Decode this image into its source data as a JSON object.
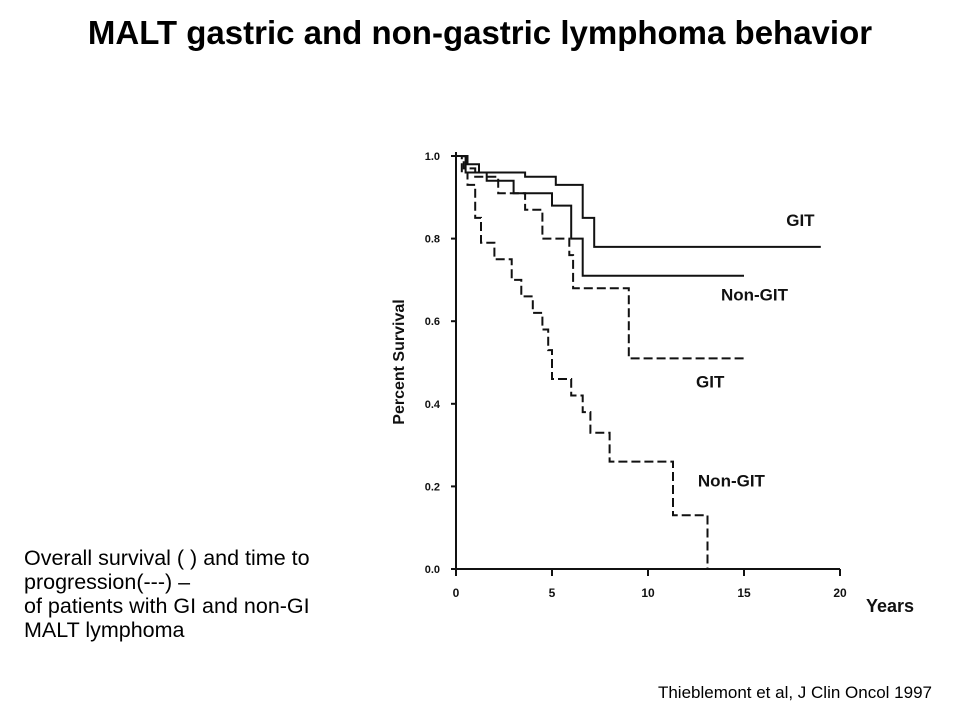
{
  "slide": {
    "title": "MALT gastric and non-gastric lymphoma behavior",
    "caption_lines": [
      "Overall survival (    ) and time to",
      "progression(---) –",
      "of patients with GI and non-GI",
      "MALT lymphoma"
    ],
    "citation": "Thieblemont et al, J Clin Oncol 1997"
  },
  "chart_data": {
    "type": "line",
    "subtype": "kaplan-meier-step",
    "title": "",
    "xlabel": "Years",
    "ylabel": "Percent Survival",
    "xlim": [
      0,
      20
    ],
    "ylim": [
      0,
      1.0
    ],
    "xticks": [
      "0",
      "5",
      "10",
      "15",
      "20"
    ],
    "yticks": [
      "0.0",
      "0.2",
      "0.4",
      "0.6",
      "0.8",
      "1.0"
    ],
    "grid": false,
    "legend": "none",
    "line_color": "#111111",
    "series": [
      {
        "name": "GIT",
        "style": "solid",
        "points": [
          [
            0,
            1.0
          ],
          [
            0.6,
            1.0
          ],
          [
            0.6,
            0.98
          ],
          [
            1.2,
            0.98
          ],
          [
            1.2,
            0.96
          ],
          [
            3.6,
            0.96
          ],
          [
            3.6,
            0.95
          ],
          [
            5.2,
            0.95
          ],
          [
            5.2,
            0.93
          ],
          [
            6.6,
            0.93
          ],
          [
            6.6,
            0.85
          ],
          [
            7.2,
            0.85
          ],
          [
            7.2,
            0.78
          ],
          [
            19,
            0.78
          ]
        ]
      },
      {
        "name": "Non-GIT",
        "style": "solid",
        "points": [
          [
            0,
            1.0
          ],
          [
            0.5,
            1.0
          ],
          [
            0.5,
            0.96
          ],
          [
            1.6,
            0.96
          ],
          [
            1.6,
            0.94
          ],
          [
            3.0,
            0.94
          ],
          [
            3.0,
            0.91
          ],
          [
            5.0,
            0.91
          ],
          [
            5.0,
            0.88
          ],
          [
            6.0,
            0.88
          ],
          [
            6.0,
            0.8
          ],
          [
            6.6,
            0.8
          ],
          [
            6.6,
            0.71
          ],
          [
            15,
            0.71
          ]
        ]
      },
      {
        "name": "GIT",
        "style": "dashed",
        "points": [
          [
            0,
            1.0
          ],
          [
            0.4,
            1.0
          ],
          [
            0.4,
            0.97
          ],
          [
            1.0,
            0.97
          ],
          [
            1.0,
            0.95
          ],
          [
            2.2,
            0.95
          ],
          [
            2.2,
            0.91
          ],
          [
            3.6,
            0.91
          ],
          [
            3.6,
            0.87
          ],
          [
            4.5,
            0.87
          ],
          [
            4.5,
            0.8
          ],
          [
            5.9,
            0.8
          ],
          [
            5.9,
            0.76
          ],
          [
            6.1,
            0.76
          ],
          [
            6.1,
            0.68
          ],
          [
            9.0,
            0.68
          ],
          [
            9.0,
            0.51
          ],
          [
            15,
            0.51
          ]
        ]
      },
      {
        "name": "Non-GIT",
        "style": "dashed",
        "points": [
          [
            0,
            1.0
          ],
          [
            0.3,
            1.0
          ],
          [
            0.3,
            0.96
          ],
          [
            0.6,
            0.96
          ],
          [
            0.6,
            0.93
          ],
          [
            1.0,
            0.93
          ],
          [
            1.0,
            0.85
          ],
          [
            1.3,
            0.85
          ],
          [
            1.3,
            0.79
          ],
          [
            2.0,
            0.79
          ],
          [
            2.0,
            0.75
          ],
          [
            2.9,
            0.75
          ],
          [
            2.9,
            0.7
          ],
          [
            3.4,
            0.7
          ],
          [
            3.4,
            0.66
          ],
          [
            4.0,
            0.66
          ],
          [
            4.0,
            0.62
          ],
          [
            4.5,
            0.62
          ],
          [
            4.5,
            0.58
          ],
          [
            4.8,
            0.58
          ],
          [
            4.8,
            0.53
          ],
          [
            5.0,
            0.53
          ],
          [
            5.0,
            0.46
          ],
          [
            6.0,
            0.46
          ],
          [
            6.0,
            0.42
          ],
          [
            6.6,
            0.42
          ],
          [
            6.6,
            0.38
          ],
          [
            7.0,
            0.38
          ],
          [
            7.0,
            0.33
          ],
          [
            8.0,
            0.33
          ],
          [
            8.0,
            0.26
          ],
          [
            11.3,
            0.26
          ],
          [
            11.3,
            0.13
          ],
          [
            13.1,
            0.13
          ],
          [
            13.1,
            0.0
          ]
        ]
      }
    ],
    "annotations": [
      {
        "text": "GIT",
        "x": 17.2,
        "y": 0.83
      },
      {
        "text": "Non-GIT",
        "x": 13.8,
        "y": 0.65
      },
      {
        "text": "GIT",
        "x": 12.5,
        "y": 0.44
      },
      {
        "text": "Non-GIT",
        "x": 12.6,
        "y": 0.2
      }
    ]
  }
}
